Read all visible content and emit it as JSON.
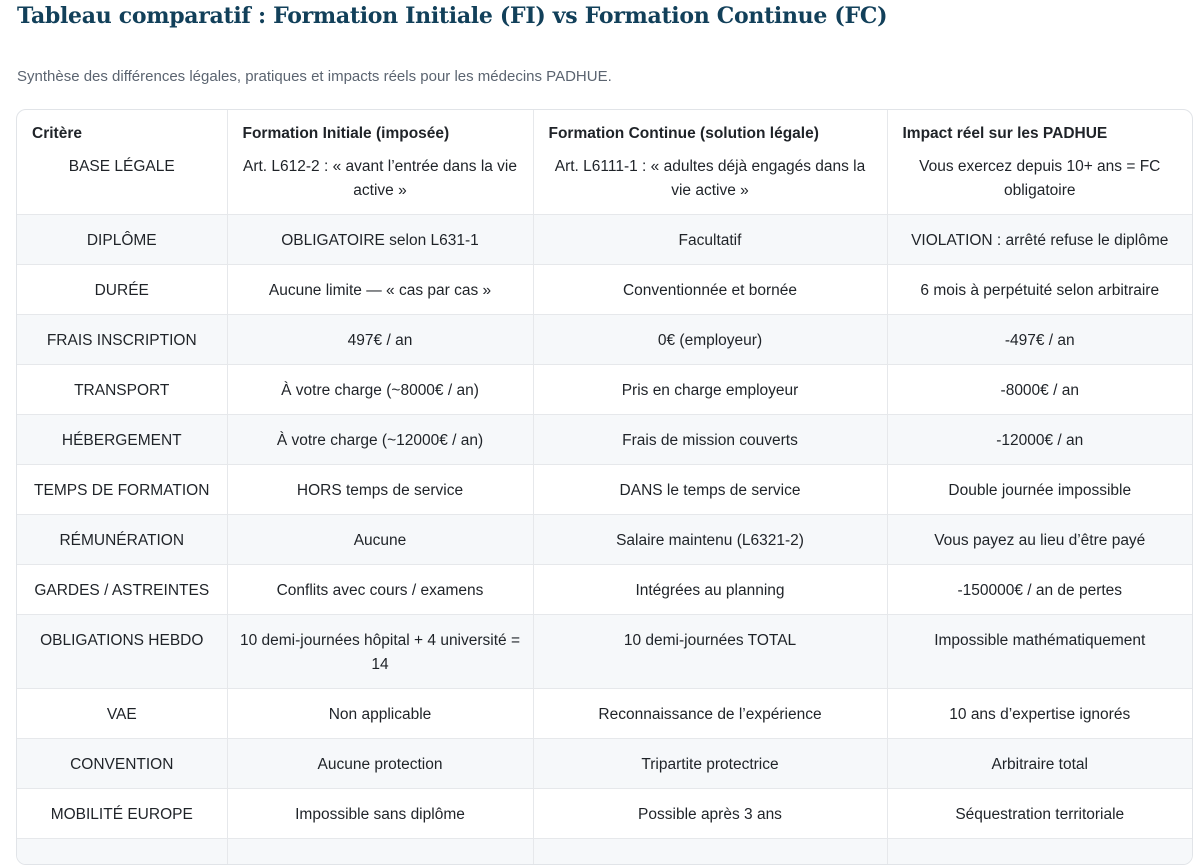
{
  "title": "Tableau comparatif : Formation Initiale (FI) vs Formation Continue (FC)",
  "subtitle": "Synthèse des différences légales, pratiques et impacts réels pour les médecins PADHUE.",
  "headers": [
    "Critère",
    "Formation Initiale (imposée)",
    "Formation Continue (solution légale)",
    "Impact réel sur les PADHUE"
  ],
  "rows": [
    [
      "BASE LÉGALE",
      "Art. L612-2 : « avant l’entrée dans la vie active »",
      "Art. L6111-1 : « adultes déjà engagés dans la vie active »",
      "Vous exercez depuis 10+ ans = FC obligatoire"
    ],
    [
      "DIPLÔME",
      "OBLIGATOIRE selon L631-1",
      "Facultatif",
      "VIOLATION : arrêté refuse le diplôme"
    ],
    [
      "DURÉE",
      "Aucune limite — « cas par cas »",
      "Conventionnée et bornée",
      "6 mois à perpétuité selon arbitraire"
    ],
    [
      "FRAIS INSCRIPTION",
      "497€ / an",
      "0€ (employeur)",
      "-497€ / an"
    ],
    [
      "TRANSPORT",
      "À votre charge (~8000€ / an)",
      "Pris en charge employeur",
      "-8000€ / an"
    ],
    [
      "HÉBERGEMENT",
      "À votre charge (~12000€ / an)",
      "Frais de mission couverts",
      "-12000€ / an"
    ],
    [
      "TEMPS DE FORMATION",
      "HORS temps de service",
      "DANS le temps de service",
      "Double journée impossible"
    ],
    [
      "RÉMUNÉRATION",
      "Aucune",
      "Salaire maintenu (L6321-2)",
      "Vous payez au lieu d’être payé"
    ],
    [
      "GARDES / ASTREINTES",
      "Conflits avec cours / examens",
      "Intégrées au planning",
      "-150000€ / an de pertes"
    ],
    [
      "OBLIGATIONS HEBDO",
      "10 demi-journées hôpital + 4 université = 14",
      "10 demi-journées TOTAL",
      "Impossible mathématiquement"
    ],
    [
      "VAE",
      "Non applicable",
      "Reconnaissance de l’expérience",
      "10 ans d’expertise ignorés"
    ],
    [
      "CONVENTION",
      "Aucune protection",
      "Tripartite protectrice",
      "Arbitraire total"
    ],
    [
      "MOBILITÉ EUROPE",
      "Impossible sans diplôme",
      "Possible après 3 ans",
      "Séquestration territoriale"
    ],
    [
      "",
      "",
      "",
      ""
    ]
  ]
}
